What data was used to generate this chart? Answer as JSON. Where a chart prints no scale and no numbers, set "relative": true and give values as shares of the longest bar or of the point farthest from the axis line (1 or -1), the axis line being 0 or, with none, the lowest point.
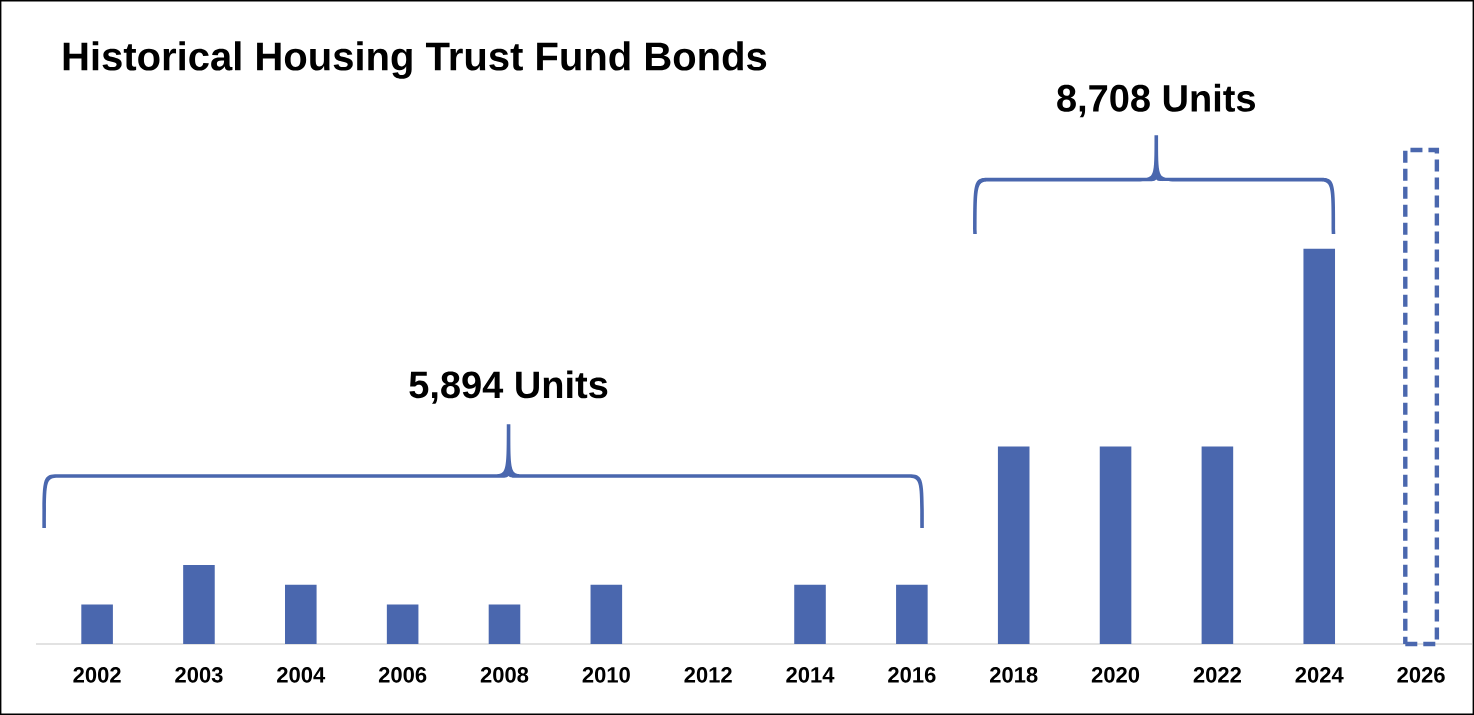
{
  "chart_data": {
    "type": "bar",
    "title": "Historical Housing Trust Fund Bonds",
    "relative": true,
    "categories": [
      "2002",
      "2003",
      "2004",
      "2006",
      "2008",
      "2010",
      "2012",
      "2014",
      "2016",
      "2018",
      "2020",
      "2022",
      "2024",
      "2026"
    ],
    "series": [
      {
        "color": "#4a67ae",
        "values": [
          0.08,
          0.16,
          0.12,
          0.08,
          0.08,
          0.12,
          0,
          0.12,
          0.12,
          0.4,
          0.4,
          0.4,
          0.8,
          null
        ]
      },
      {
        "color": "#4a67ae",
        "line_style": "dashed",
        "values": [
          null,
          null,
          null,
          null,
          null,
          null,
          null,
          null,
          null,
          null,
          null,
          null,
          null,
          1
        ]
      }
    ],
    "annotations": [
      "5,894 Units",
      "8,708 Units"
    ]
  }
}
